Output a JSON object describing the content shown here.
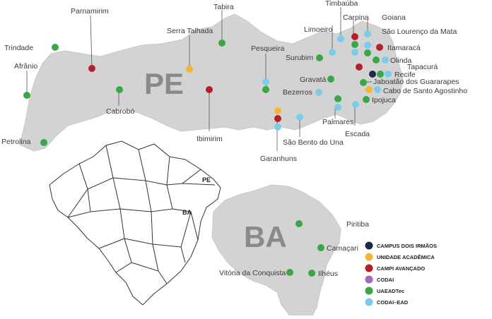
{
  "map": {
    "pe_label": "PE",
    "ba_label": "BA",
    "brazil_pe_label": "PE",
    "brazil_ba_label": "BA"
  },
  "legend": [
    {
      "key": "campus",
      "label": "CAMPUS DOIS IRMÃOS",
      "color": "#1c2a4a"
    },
    {
      "key": "unidade",
      "label": "UNIDADE ACADÊMICA",
      "color": "#f2b632"
    },
    {
      "key": "campi",
      "label": "CAMPI AVANÇADO",
      "color": "#b3202a"
    },
    {
      "key": "codai",
      "label": "CODAI",
      "color": "#9b6bb5"
    },
    {
      "key": "uaeadtec",
      "label": "UAEADTec",
      "color": "#3aa64a"
    },
    {
      "key": "codai_ead",
      "label": "CODAI–EAD",
      "color": "#7ccbeb"
    }
  ],
  "places": [
    {
      "name": "Trindade",
      "dots": [
        "uaeadtec"
      ]
    },
    {
      "name": "Parnamirim",
      "dots": [
        "campi"
      ]
    },
    {
      "name": "Tabira",
      "dots": [
        "uaeadtec"
      ]
    },
    {
      "name": "Serra Talhada",
      "dots": [
        "unidade"
      ]
    },
    {
      "name": "Afrânio",
      "dots": [
        "uaeadtec"
      ]
    },
    {
      "name": "Cabrobó",
      "dots": [
        "uaeadtec"
      ]
    },
    {
      "name": "Ibimirim",
      "dots": [
        "campi"
      ]
    },
    {
      "name": "Petrolina",
      "dots": [
        "uaeadtec"
      ]
    },
    {
      "name": "Pesqueira",
      "dots": [
        "codai_ead",
        "uaeadtec"
      ]
    },
    {
      "name": "Timbaúba",
      "dots": [
        "codai_ead"
      ]
    },
    {
      "name": "Limoeiro",
      "dots": [
        "codai_ead"
      ]
    },
    {
      "name": "Surubim",
      "dots": [
        "uaeadtec"
      ]
    },
    {
      "name": "Carpina",
      "dots": [
        "campi",
        "uaeadtec",
        "codai_ead"
      ]
    },
    {
      "name": "Goiana",
      "dots": [
        "codai_ead"
      ]
    },
    {
      "name": "São Lourenço da Mata",
      "dots": [
        "codai_ead",
        "uaeadtec"
      ]
    },
    {
      "name": "Itamaracá",
      "dots": [
        "campi"
      ]
    },
    {
      "name": "Olinda",
      "dots": [
        "uaeadtec",
        "codai_ead"
      ]
    },
    {
      "name": "Tapacurá",
      "dots": [
        "campi"
      ]
    },
    {
      "name": "Recife",
      "dots": [
        "campus",
        "uaeadtec",
        "codai_ead"
      ]
    },
    {
      "name": "Jaboatão dos Guararapes",
      "dots": [
        "uaeadtec"
      ]
    },
    {
      "name": "Cabo de Santo Agostinho",
      "dots": [
        "codai_ead",
        "unidade"
      ]
    },
    {
      "name": "Gravatá",
      "dots": [
        "uaeadtec"
      ]
    },
    {
      "name": "Bezerros",
      "dots": [
        "codai_ead"
      ]
    },
    {
      "name": "Ipojuca",
      "dots": [
        "uaeadtec"
      ]
    },
    {
      "name": "Palmares",
      "dots": [
        "uaeadtec",
        "codai_ead"
      ]
    },
    {
      "name": "Escada",
      "dots": [
        "codai_ead"
      ]
    },
    {
      "name": "Garanhuns",
      "dots": [
        "unidade",
        "campi",
        "codai_ead"
      ]
    },
    {
      "name": "São Bento do Una",
      "dots": [
        "codai_ead"
      ]
    },
    {
      "name": "Piritiba",
      "dots": [
        "uaeadtec"
      ]
    },
    {
      "name": "Camaçari",
      "dots": [
        "uaeadtec"
      ]
    },
    {
      "name": "Vitória da Conquista",
      "dots": [
        "uaeadtec"
      ]
    },
    {
      "name": "Ilhéus",
      "dots": [
        "uaeadtec"
      ]
    }
  ]
}
